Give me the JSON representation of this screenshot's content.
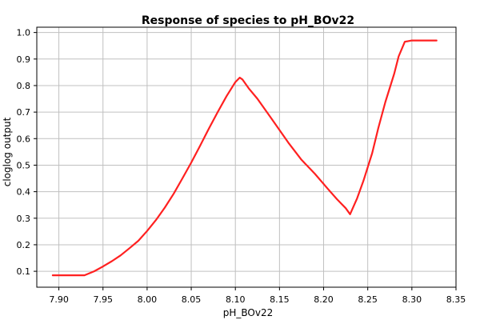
{
  "chart_data": {
    "type": "line",
    "title": "Response of species to pH_BOv22",
    "xlabel": "pH_BOv22",
    "ylabel": "cloglog output",
    "xlim": [
      7.875,
      8.35
    ],
    "ylim": [
      0.04,
      1.02
    ],
    "x_ticks": [
      "7.90",
      "7.95",
      "8.00",
      "8.05",
      "8.10",
      "8.15",
      "8.20",
      "8.25",
      "8.30",
      "8.35"
    ],
    "y_ticks": [
      "0.1",
      "0.2",
      "0.3",
      "0.4",
      "0.5",
      "0.6",
      "0.7",
      "0.8",
      "0.9",
      "1.0"
    ],
    "grid": true,
    "colors": {
      "series": "#ff2020",
      "grid": "#c0c0c0",
      "frame": "#000000"
    },
    "series": [
      {
        "x": [
          7.893,
          7.929,
          7.94,
          7.95,
          7.96,
          7.97,
          7.98,
          7.99,
          8.0,
          8.01,
          8.02,
          8.03,
          8.04,
          8.05,
          8.06,
          8.07,
          8.08,
          8.09,
          8.1,
          8.105,
          8.108,
          8.115,
          8.125,
          8.14,
          8.16,
          8.175,
          8.19,
          8.205,
          8.215,
          8.225,
          8.23,
          8.238,
          8.245,
          8.255,
          8.262,
          8.27,
          8.28,
          8.285,
          8.292,
          8.3,
          8.31,
          8.328
        ],
        "y": [
          0.085,
          0.085,
          0.1,
          0.118,
          0.138,
          0.16,
          0.187,
          0.215,
          0.252,
          0.293,
          0.34,
          0.392,
          0.45,
          0.51,
          0.573,
          0.638,
          0.7,
          0.76,
          0.813,
          0.83,
          0.823,
          0.79,
          0.75,
          0.68,
          0.585,
          0.52,
          0.468,
          0.41,
          0.372,
          0.338,
          0.315,
          0.375,
          0.44,
          0.545,
          0.64,
          0.738,
          0.845,
          0.91,
          0.965,
          0.97,
          0.97,
          0.97
        ]
      }
    ]
  }
}
